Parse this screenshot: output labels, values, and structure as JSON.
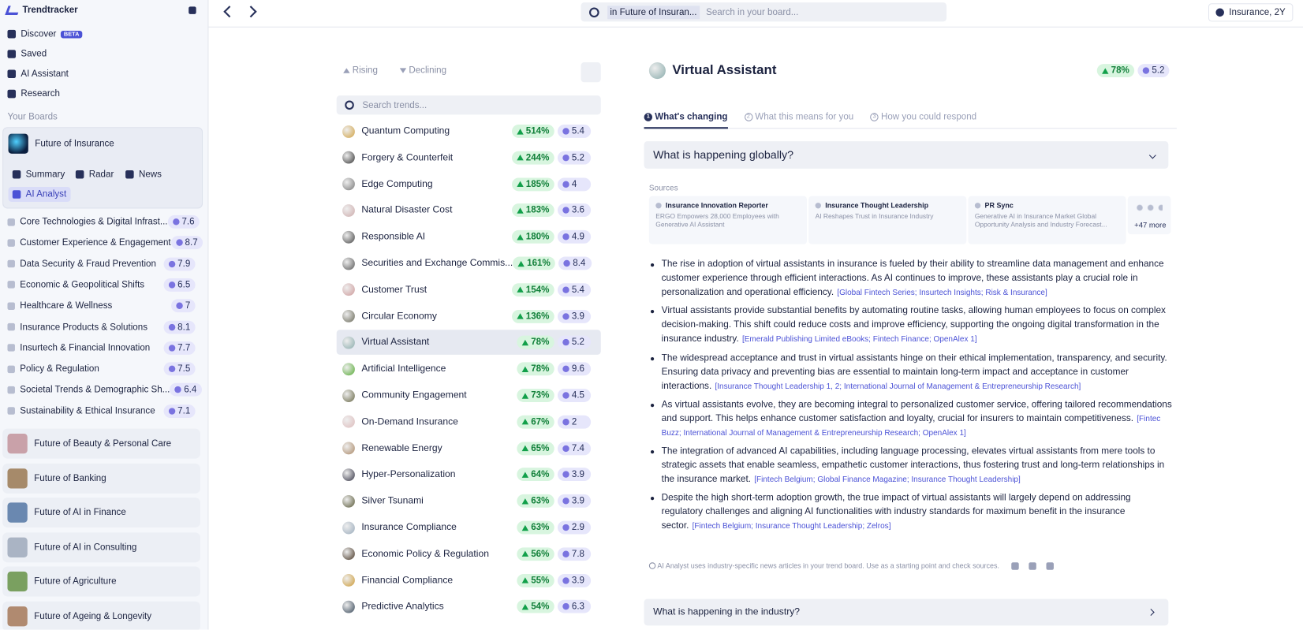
{
  "sidebar": {
    "app_name": "Trendtracker",
    "nav": [
      {
        "label": "Discover",
        "badge": "BETA"
      },
      {
        "label": "Saved"
      },
      {
        "label": "AI Assistant"
      },
      {
        "label": "Research"
      }
    ],
    "boards_label": "Your Boards",
    "active_board": "Future of Insurance",
    "board_tabs": [
      "Summary",
      "Radar",
      "News",
      "AI Analyst"
    ],
    "topics": [
      {
        "name": "Core Technologies & Digital Infrast...",
        "score": 7.6
      },
      {
        "name": "Customer Experience & Engagement",
        "score": 8.7
      },
      {
        "name": "Data Security & Fraud Prevention",
        "score": 7.9
      },
      {
        "name": "Economic & Geopolitical Shifts",
        "score": 6.5
      },
      {
        "name": "Healthcare & Wellness",
        "score": 7
      },
      {
        "name": "Insurance Products & Solutions",
        "score": 8.1
      },
      {
        "name": "Insurtech & Financial Innovation",
        "score": 7.7
      },
      {
        "name": "Policy & Regulation",
        "score": 7.5
      },
      {
        "name": "Societal Trends & Demographic Sh...",
        "score": 6.4
      },
      {
        "name": "Sustainability & Ethical Insurance",
        "score": 7.1
      }
    ],
    "other_boards": [
      "Future of Beauty & Personal Care",
      "Future of Banking",
      "Future of AI in Finance",
      "Future of AI in Consulting",
      "Future of Agriculture",
      "Future of Ageing & Longevity"
    ]
  },
  "topbar": {
    "search_scope": "in Future of Insuran...",
    "search_placeholder": "Search in your board...",
    "context": "Insurance, 2Y"
  },
  "trends": {
    "filters": [
      "Rising",
      "Declining"
    ],
    "search_placeholder": "Search trends...",
    "items": [
      {
        "name": "Quantum Computing",
        "growth": "514%",
        "score": 5.4
      },
      {
        "name": "Forgery & Counterfeit",
        "growth": "244%",
        "score": 5.2
      },
      {
        "name": "Edge Computing",
        "growth": "185%",
        "score": 4
      },
      {
        "name": "Natural Disaster Cost",
        "growth": "183%",
        "score": 3.6
      },
      {
        "name": "Responsible AI",
        "growth": "180%",
        "score": 4.9
      },
      {
        "name": "Securities and Exchange Commis...",
        "growth": "161%",
        "score": 8.4
      },
      {
        "name": "Customer Trust",
        "growth": "154%",
        "score": 5.4
      },
      {
        "name": "Circular Economy",
        "growth": "136%",
        "score": 3.9
      },
      {
        "name": "Virtual Assistant",
        "growth": "78%",
        "score": 5.2
      },
      {
        "name": "Artificial Intelligence",
        "growth": "78%",
        "score": 9.6
      },
      {
        "name": "Community Engagement",
        "growth": "73%",
        "score": 4.5
      },
      {
        "name": "On-Demand Insurance",
        "growth": "67%",
        "score": 2
      },
      {
        "name": "Renewable Energy",
        "growth": "65%",
        "score": 7.4
      },
      {
        "name": "Hyper-Personalization",
        "growth": "64%",
        "score": 3.9
      },
      {
        "name": "Silver Tsunami",
        "growth": "63%",
        "score": 3.9
      },
      {
        "name": "Insurance Compliance",
        "growth": "63%",
        "score": 2.9
      },
      {
        "name": "Economic Policy & Regulation",
        "growth": "56%",
        "score": 7.8
      },
      {
        "name": "Financial Compliance",
        "growth": "55%",
        "score": 3.9
      },
      {
        "name": "Predictive Analytics",
        "growth": "54%",
        "score": 6.3
      }
    ]
  },
  "detail": {
    "title": "Virtual Assistant",
    "growth": "78%",
    "score": 5.2,
    "tabs": [
      {
        "number": "1",
        "label": "What's changing"
      },
      {
        "number": "2",
        "label": "What this means for you"
      },
      {
        "number": "3",
        "label": "How you could respond"
      }
    ],
    "section": "What is happening globally?",
    "sources_label": "Sources",
    "sources": [
      {
        "publisher": "Insurance Innovation Reporter",
        "headline": "ERGO Empowers 28,000 Employees with Generative AI Assistant"
      },
      {
        "publisher": "Insurance Thought Leadership",
        "headline": "AI Reshapes Trust in Insurance Industry"
      },
      {
        "publisher": "PR Sync",
        "headline": "Generative AI in Insurance Market Global Opportunity Analysis and Industry Forecast..."
      }
    ],
    "more_sources": "+47 more",
    "bullets": [
      {
        "text": "The rise in adoption of virtual assistants in insurance is fueled by their ability to streamline data management and enhance customer experience through efficient interactions. As AI continues to improve, these assistants play a crucial role in personalization and operational efficiency.",
        "refs": "[Global Fintech Series; Insurtech Insights; Risk & Insurance]"
      },
      {
        "text": "Virtual assistants provide substantial benefits by automating routine tasks, allowing human employees to focus on complex decision-making. This shift could reduce costs and improve efficiency, supporting the ongoing digital transformation in the insurance industry.",
        "refs": "[Emerald Publishing Limited eBooks; Fintech Finance; OpenAlex 1]"
      },
      {
        "text": "The widespread acceptance and trust in virtual assistants hinge on their ethical implementation, transparency, and security. Ensuring data privacy and preventing bias are essential to maintain long-term impact and acceptance in customer interactions.",
        "refs": "[Insurance Thought Leadership 1, 2; International Journal of Management & Entrepreneurship Research]"
      },
      {
        "text": "As virtual assistants evolve, they are becoming integral to personalized customer service, offering tailored recommendations and support. This helps enhance customer satisfaction and loyalty, crucial for insurers to maintain competitiveness.",
        "refs": "[Fintec Buzz; International Journal of Management & Entrepreneurship Research; OpenAlex 1]"
      },
      {
        "text": "The integration of advanced AI capabilities, including language processing, elevates virtual assistants from mere tools to strategic assets that enable seamless, empathetic customer interactions, thus fostering trust and long-term relationships in the insurance market.",
        "refs": "[Fintech Belgium; Global Finance Magazine; Insurance Thought Leadership]"
      },
      {
        "text": "Despite the high short-term adoption growth, the true impact of virtual assistants will largely depend on addressing regulatory challenges and aligning AI functionalities with industry standards for maximum benefit in the insurance sector.",
        "refs": "[Fintech Belgium; Insurance Thought Leadership; Zelros]"
      }
    ],
    "note": "AI Analyst uses industry-specific news articles in your trend board. Use as a starting point and check sources.",
    "next_section": "What is happening in the industry?"
  }
}
